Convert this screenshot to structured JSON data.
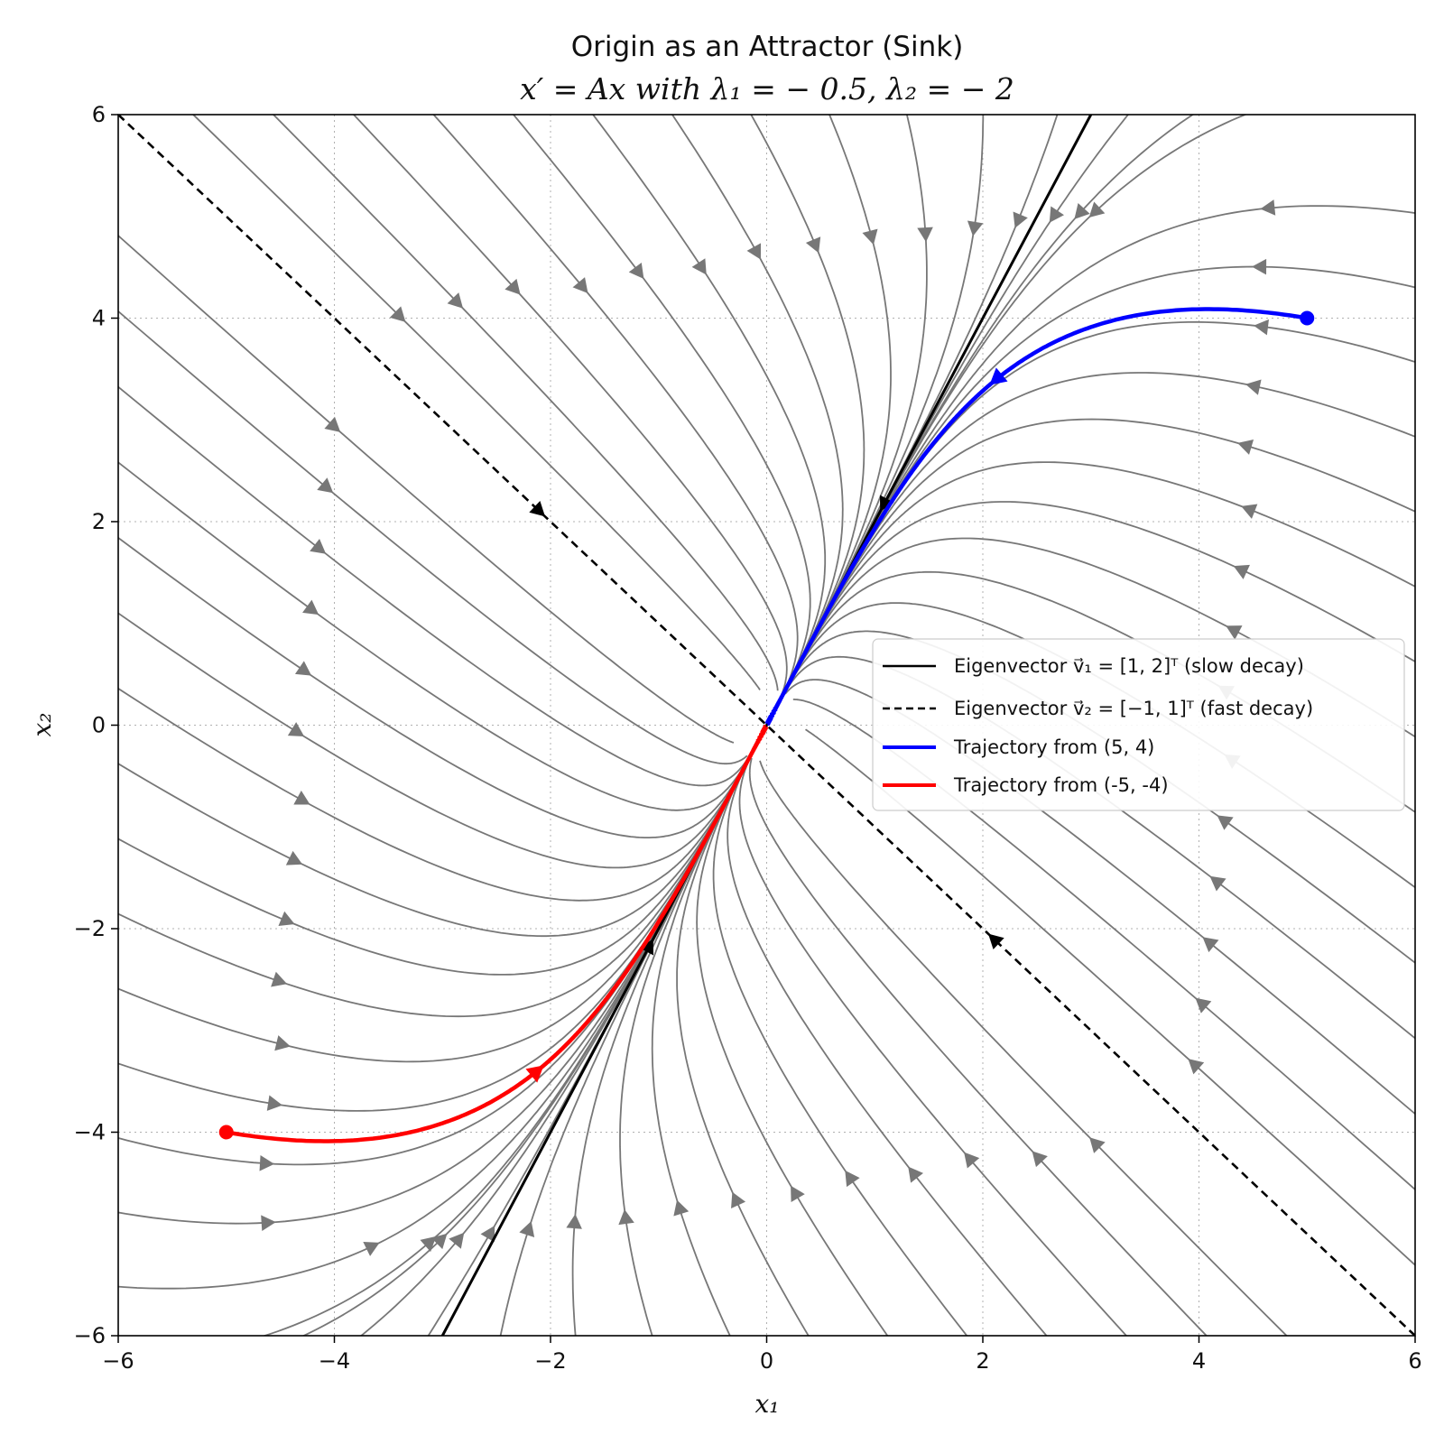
{
  "chart_data": {
    "type": "line",
    "title_line1": "Origin as an Attractor (Sink)",
    "title_line2": "x′ = Ax with λ₁ = − 0.5, λ₂ = − 2",
    "xlabel": "x₁",
    "ylabel": "x₂",
    "xlim": [
      -6,
      6
    ],
    "ylim": [
      -6,
      6
    ],
    "xticks": [
      -6,
      -4,
      -2,
      0,
      2,
      4,
      6
    ],
    "yticks": [
      -6,
      -4,
      -2,
      0,
      2,
      4,
      6
    ],
    "xtick_labels": [
      "−6",
      "−4",
      "−2",
      "0",
      "2",
      "4",
      "6"
    ],
    "ytick_labels": [
      "−6",
      "−4",
      "−2",
      "0",
      "2",
      "4",
      "6"
    ],
    "grid": true,
    "legend_position": "center-right",
    "system": {
      "lambda1": -0.5,
      "lambda2": -2,
      "v1": [
        1,
        2
      ],
      "v2": [
        -1,
        1
      ]
    },
    "series": [
      {
        "name": "Eigenvector v⃗₁ = [1, 2]ᵀ (slow decay)",
        "color": "#000000",
        "style": "solid",
        "x": [
          -3,
          0,
          3
        ],
        "y": [
          -6,
          0,
          6
        ]
      },
      {
        "name": "Eigenvector v⃗₂ = [−1, 1]ᵀ (fast decay)",
        "color": "#000000",
        "style": "dashed",
        "x": [
          -6,
          0,
          6
        ],
        "y": [
          6,
          0,
          -6
        ]
      },
      {
        "name": "Trajectory from (5, 4)",
        "color": "#0000ff",
        "style": "solid",
        "start": [
          5,
          4
        ],
        "x": [
          5,
          4.0,
          3.0,
          2.0,
          1.0,
          0.5,
          0
        ],
        "y": [
          4,
          4.1,
          3.9,
          3.0,
          1.95,
          1.0,
          0
        ]
      },
      {
        "name": "Trajectory from (-5, -4)",
        "color": "#ff0000",
        "style": "solid",
        "start": [
          -5,
          -4
        ],
        "x": [
          -5,
          -4.0,
          -3.0,
          -2.0,
          -1.0,
          -0.5,
          0
        ],
        "y": [
          -4,
          -4.1,
          -3.9,
          -3.0,
          -1.95,
          -1.0,
          0
        ]
      }
    ],
    "streamplot": {
      "color": "#777777",
      "description_seeds": "flow field of x' = A x"
    }
  }
}
